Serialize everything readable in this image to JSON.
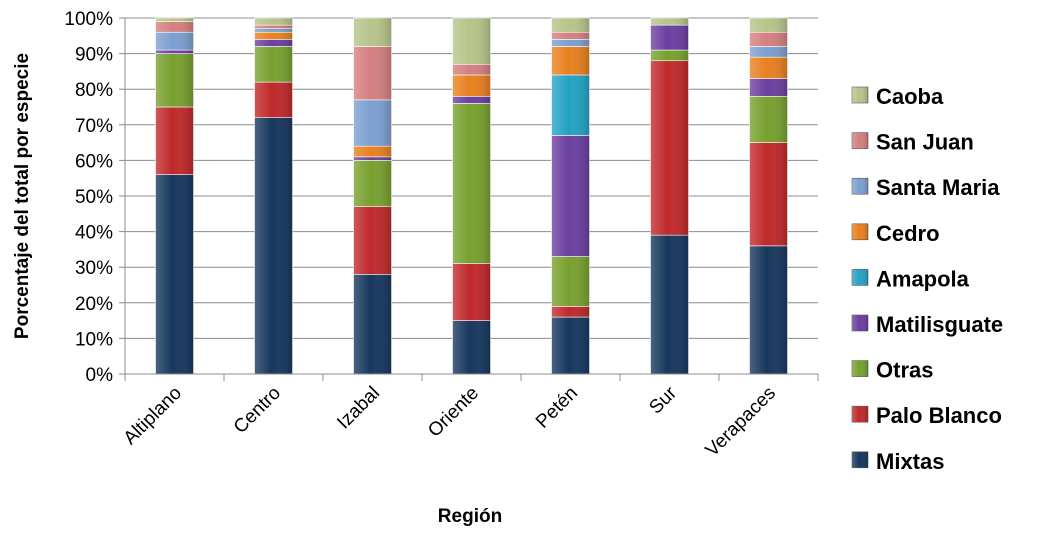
{
  "chart_data": {
    "type": "bar",
    "stacked": true,
    "percent_stacked": true,
    "xlabel": "Región",
    "ylabel": "Porcentaje del total por especie",
    "y_tick_labels": [
      "0%",
      "10%",
      "20%",
      "30%",
      "40%",
      "50%",
      "60%",
      "70%",
      "80%",
      "90%",
      "100%"
    ],
    "ylim": [
      0,
      100
    ],
    "grid": "horizontal",
    "legend_position": "right",
    "categories": [
      "Altiplano",
      "Centro",
      "Izabal",
      "Oriente",
      "Petén",
      "Sur",
      "Verapaces"
    ],
    "series": [
      {
        "name": "Mixtas",
        "color": "#17375e",
        "values": [
          56,
          72,
          28,
          15,
          16,
          39,
          36
        ]
      },
      {
        "name": "Palo Blanco",
        "color": "#c0292b",
        "values": [
          19,
          10,
          19,
          16,
          3,
          49,
          29
        ]
      },
      {
        "name": "Otras",
        "color": "#77a02e",
        "values": [
          15,
          10,
          13,
          45,
          14,
          3,
          13
        ]
      },
      {
        "name": "Matilisguate",
        "color": "#6b3fa0",
        "values": [
          1,
          2,
          1,
          2,
          34,
          7,
          5
        ]
      },
      {
        "name": "Amapola",
        "color": "#24a2c4",
        "values": [
          0,
          0,
          0,
          0,
          17,
          0,
          0
        ]
      },
      {
        "name": "Cedro",
        "color": "#e8801f",
        "values": [
          0,
          2,
          3,
          6,
          8,
          0,
          6
        ]
      },
      {
        "name": "Santa Maria",
        "color": "#7b9fd1",
        "values": [
          5,
          1,
          13,
          0,
          2,
          0,
          3
        ]
      },
      {
        "name": "San Juan",
        "color": "#d47f80",
        "values": [
          3,
          1,
          15,
          3,
          2,
          0,
          4
        ]
      },
      {
        "name": "Caoba",
        "color": "#b6c48a",
        "values": [
          1,
          2,
          8,
          13,
          4,
          2,
          4
        ]
      }
    ]
  }
}
